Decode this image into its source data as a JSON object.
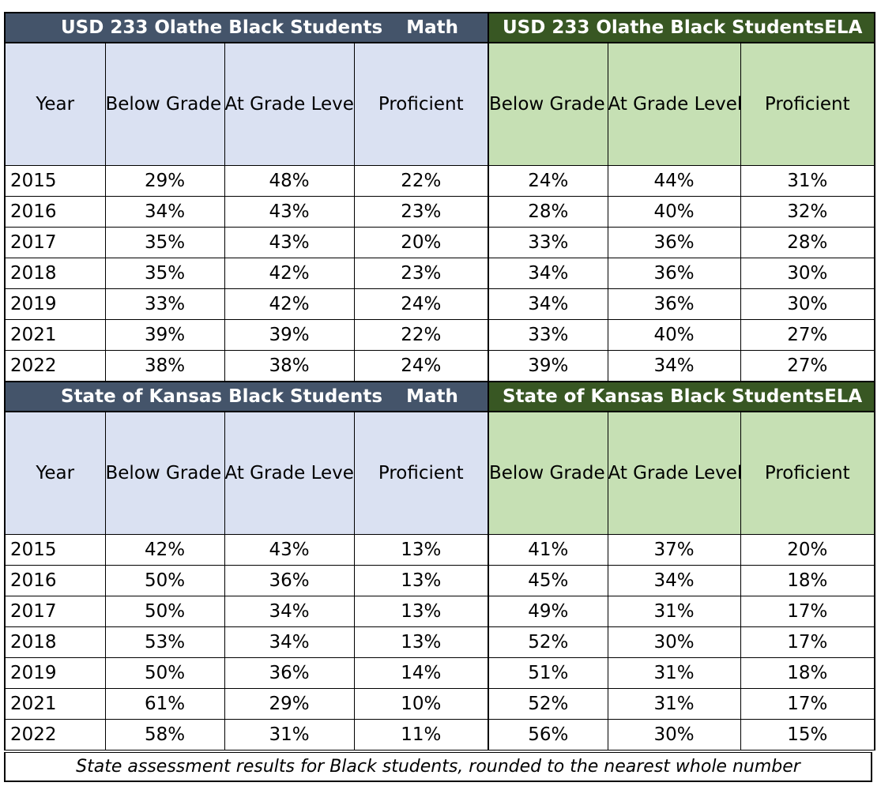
{
  "sections": [
    {
      "math_title": "USD 233 Olathe Black Students",
      "math_label": "Math",
      "ela_title": "USD 233 Olathe Black Students",
      "ela_label": "ELA",
      "headers": [
        "Year",
        "Below Grade Level",
        "At Grade Level, Needs Remedial Training",
        "Proficient",
        "Below Grade Level",
        "At Grade Level, Needs Remedial Training",
        "Proficient"
      ],
      "rows": [
        [
          "2015",
          "29%",
          "48%",
          "22%",
          "24%",
          "44%",
          "31%"
        ],
        [
          "2016",
          "34%",
          "43%",
          "23%",
          "28%",
          "40%",
          "32%"
        ],
        [
          "2017",
          "35%",
          "43%",
          "20%",
          "33%",
          "36%",
          "28%"
        ],
        [
          "2018",
          "35%",
          "42%",
          "23%",
          "34%",
          "36%",
          "30%"
        ],
        [
          "2019",
          "33%",
          "42%",
          "24%",
          "34%",
          "36%",
          "30%"
        ],
        [
          "2021",
          "39%",
          "39%",
          "22%",
          "33%",
          "40%",
          "27%"
        ],
        [
          "2022",
          "38%",
          "38%",
          "24%",
          "39%",
          "34%",
          "27%"
        ]
      ]
    },
    {
      "math_title": "State of Kansas Black Students",
      "math_label": "Math",
      "ela_title": "State of Kansas Black Students",
      "ela_label": "ELA",
      "headers": [
        "Year",
        "Below Grade Level",
        "At Grade Level, Needs Remedial Training",
        "Proficient",
        "Below Grade Level",
        "At Grade Level, Needs Remedial Training",
        "Proficient"
      ],
      "rows": [
        [
          "2015",
          "42%",
          "43%",
          "13%",
          "41%",
          "37%",
          "20%"
        ],
        [
          "2016",
          "50%",
          "36%",
          "13%",
          "45%",
          "34%",
          "18%"
        ],
        [
          "2017",
          "50%",
          "34%",
          "13%",
          "49%",
          "31%",
          "17%"
        ],
        [
          "2018",
          "53%",
          "34%",
          "13%",
          "52%",
          "30%",
          "17%"
        ],
        [
          "2019",
          "50%",
          "36%",
          "14%",
          "51%",
          "31%",
          "18%"
        ],
        [
          "2021",
          "61%",
          "29%",
          "10%",
          "52%",
          "31%",
          "17%"
        ],
        [
          "2022",
          "58%",
          "31%",
          "11%",
          "56%",
          "30%",
          "15%"
        ]
      ]
    }
  ],
  "caption": "State assessment results for Black students, rounded to the nearest whole number",
  "colors": {
    "math_title_bg": "#44546a",
    "ela_title_bg": "#385723",
    "math_header_bg": "#dae1f2",
    "ela_header_bg": "#c6e0b4"
  }
}
